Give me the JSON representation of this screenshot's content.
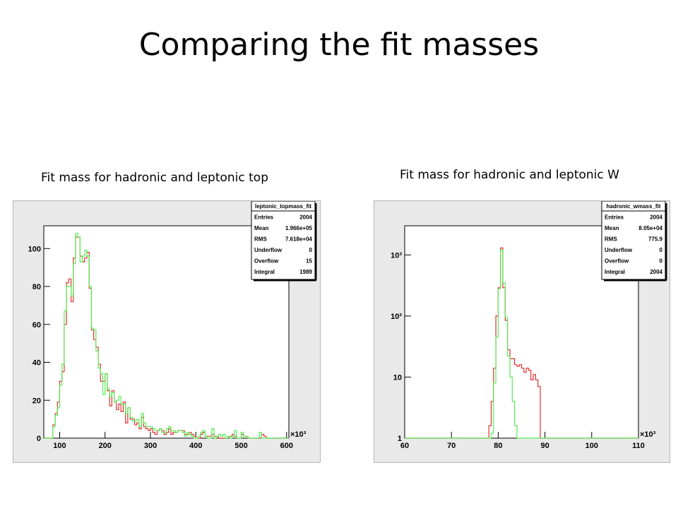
{
  "slide": {
    "title": "Comparing the fit masses",
    "left_caption": "Fit mass for hadronic and leptonic top",
    "right_caption": "Fit mass for hadronic and leptonic W"
  },
  "colors": {
    "red": "#e03030",
    "green": "#55ee55",
    "canvas": "#e9e9e9"
  },
  "chart_data": [
    {
      "type": "histogram",
      "log_y": false,
      "x_exponent_label": "×10³",
      "xlim": [
        65,
        605
      ],
      "ylim": [
        0,
        112
      ],
      "x_ticks": [
        100,
        200,
        300,
        400,
        500,
        600
      ],
      "x_tick_labels": [
        "100",
        "200",
        "300",
        "400",
        "500",
        "600"
      ],
      "y_ticks": [
        0,
        20,
        40,
        60,
        80,
        100
      ],
      "y_tick_labels": [
        "0",
        "20",
        "40",
        "60",
        "80",
        "100"
      ],
      "bin_start": 65,
      "bin_width": 5,
      "series": [
        {
          "color": "red",
          "values": [
            0,
            0,
            0,
            0,
            7,
            13,
            19,
            30,
            35,
            60,
            82,
            84,
            72,
            95,
            106,
            106,
            96,
            93,
            95,
            98,
            79,
            57,
            52,
            48,
            39,
            30,
            30,
            34,
            25,
            17,
            25,
            19,
            15,
            18,
            14,
            19,
            8,
            16,
            10,
            10,
            7,
            8,
            5,
            11,
            6,
            5,
            4,
            5,
            3,
            2,
            4,
            5,
            4,
            2,
            3,
            5,
            2,
            3,
            3,
            4,
            4,
            4,
            2,
            2,
            3,
            2,
            1,
            0,
            0,
            2,
            3,
            1,
            1,
            1,
            2,
            1,
            1,
            0,
            0,
            0,
            0,
            1,
            1,
            2,
            1,
            0,
            0,
            2,
            1,
            1,
            0,
            0,
            0,
            0,
            0,
            0,
            2,
            1,
            0,
            0,
            0,
            0,
            0,
            0,
            0,
            0,
            0,
            0
          ]
        },
        {
          "color": "green",
          "values": [
            0,
            0,
            0,
            0,
            6,
            12,
            16,
            28,
            39,
            67,
            80,
            80,
            75,
            92,
            108,
            106,
            93,
            96,
            99,
            96,
            80,
            58,
            57,
            46,
            37,
            34,
            23,
            34,
            26,
            22,
            24,
            19,
            20,
            22,
            18,
            18,
            13,
            16,
            11,
            9,
            9,
            10,
            6,
            13,
            8,
            6,
            6,
            6,
            5,
            4,
            4,
            5,
            3,
            3,
            5,
            6,
            4,
            4,
            3,
            4,
            4,
            3,
            1,
            3,
            2,
            1,
            0,
            0,
            1,
            3,
            4,
            1,
            0,
            0,
            5,
            0,
            1,
            2,
            1,
            2,
            0,
            1,
            0,
            1,
            4,
            0,
            0,
            3,
            1,
            1,
            0,
            0,
            0,
            0,
            0,
            3,
            0,
            0,
            0,
            0,
            0,
            0,
            0,
            0,
            0,
            0,
            0,
            0
          ]
        }
      ],
      "stats": {
        "title": "leptonic_topmass_fit",
        "rows": [
          {
            "label": "Entries",
            "value": "2004"
          },
          {
            "label": "Mean",
            "value": "1.966e+05"
          },
          {
            "label": "RMS",
            "value": "7.618e+04"
          },
          {
            "label": "Underflow",
            "value": "0"
          },
          {
            "label": "Overflow",
            "value": "15"
          },
          {
            "label": "Integral",
            "value": "1989"
          }
        ]
      }
    },
    {
      "type": "histogram",
      "log_y": true,
      "x_exponent_label": "×10³",
      "xlim": [
        60,
        110
      ],
      "ylim": [
        1,
        3000
      ],
      "x_ticks": [
        60,
        70,
        80,
        90,
        100,
        110
      ],
      "x_tick_labels": [
        "60",
        "70",
        "80",
        "90",
        "100",
        "110"
      ],
      "y_ticks": [
        1,
        10,
        100,
        1000
      ],
      "y_tick_labels": [
        "1",
        "10",
        "10²",
        "10³"
      ],
      "bin_start": 60,
      "bin_width": 0.5,
      "series": [
        {
          "color": "red",
          "values": [
            0,
            0,
            0,
            0,
            0,
            0,
            0,
            0,
            0,
            0,
            0,
            0,
            0,
            0,
            0,
            0,
            0,
            0,
            0,
            0,
            0,
            0,
            0,
            0,
            0,
            0,
            0,
            0,
            0,
            0,
            0,
            0,
            0,
            0,
            0,
            0,
            1.6,
            4,
            14,
            100,
            290,
            1300,
            290,
            85,
            28,
            20,
            20,
            16,
            15,
            16,
            14,
            12,
            14,
            13,
            9,
            11,
            9,
            7,
            0,
            0,
            0,
            0,
            0,
            0,
            0,
            0,
            0,
            0,
            0,
            0,
            0,
            0,
            0,
            0,
            0,
            0,
            0,
            0,
            0,
            0,
            0,
            0,
            0,
            0,
            0,
            0,
            0,
            0,
            0,
            0,
            0,
            0,
            0,
            0,
            0,
            0,
            0,
            0,
            0,
            0
          ]
        },
        {
          "color": "green",
          "values": [
            0,
            0,
            0,
            0,
            0,
            0,
            0,
            0,
            0,
            0,
            0,
            0,
            0,
            0,
            0,
            0,
            0,
            0,
            0,
            0,
            0,
            0,
            0,
            0,
            0,
            0,
            0,
            0,
            0,
            0,
            0,
            0,
            0,
            0,
            0,
            0,
            0,
            1.2,
            8,
            45,
            280,
            1200,
            350,
            95,
            22,
            10,
            4,
            1.6,
            0,
            0,
            0,
            0,
            0,
            0,
            0,
            0,
            0,
            0,
            0,
            0,
            0,
            0,
            0,
            0,
            0,
            0,
            0,
            0,
            0,
            0,
            0,
            0,
            0,
            0,
            0,
            0,
            0,
            0,
            0,
            0,
            0,
            0,
            0,
            0,
            0,
            0,
            0,
            0,
            0,
            0,
            0,
            0,
            0,
            0,
            0,
            0,
            0,
            0,
            0,
            0
          ]
        }
      ],
      "stats": {
        "title": "hadronic_wmass_fit",
        "rows": [
          {
            "label": "Entries",
            "value": "2004"
          },
          {
            "label": "Mean",
            "value": "8.05e+04"
          },
          {
            "label": "RMS",
            "value": "775.9"
          },
          {
            "label": "Underflow",
            "value": "0"
          },
          {
            "label": "Overflow",
            "value": "0"
          },
          {
            "label": "Integral",
            "value": "2004"
          }
        ]
      }
    }
  ]
}
